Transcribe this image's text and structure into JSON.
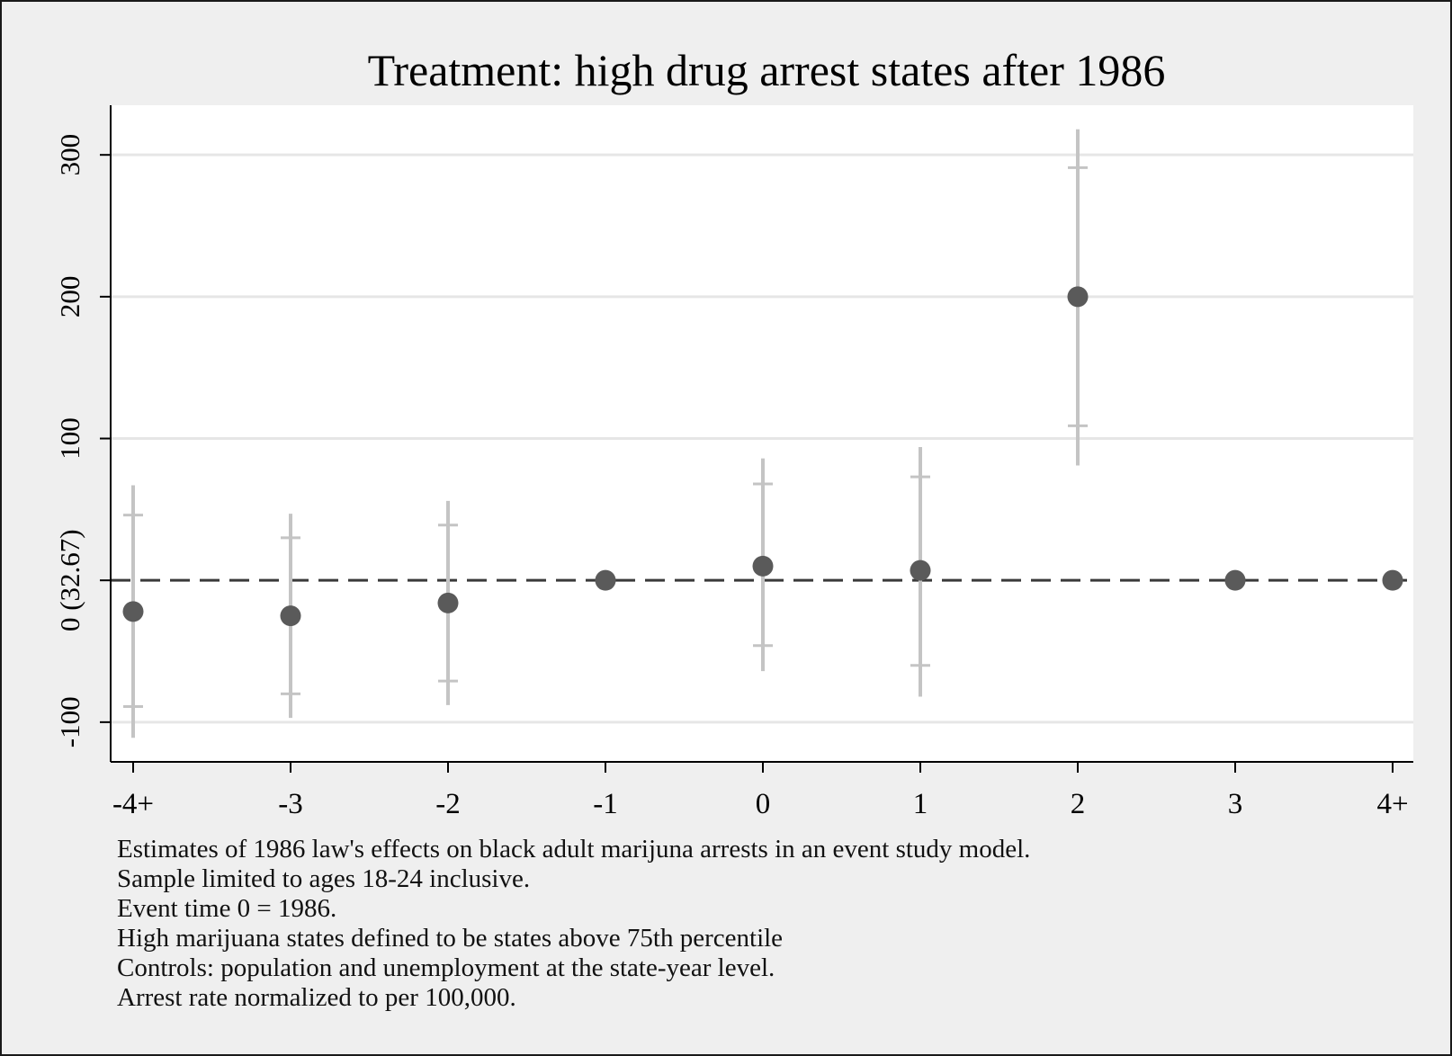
{
  "chart_data": {
    "type": "scatter",
    "title": "Treatment: high drug arrest states after 1986",
    "xlabel": "",
    "ylabel": "",
    "categories": [
      "-4+",
      "-3",
      "-2",
      "-1",
      "0",
      "1",
      "2",
      "3",
      "4+"
    ],
    "y_ticks": [
      {
        "value": 300,
        "label": "300"
      },
      {
        "value": 200,
        "label": "200"
      },
      {
        "value": 100,
        "label": "100"
      },
      {
        "value": 0,
        "label": "0 (32.67)"
      },
      {
        "value": -100,
        "label": "-100"
      }
    ],
    "ylim": [
      -128,
      335
    ],
    "grid": true,
    "reference_line": {
      "value": 0,
      "style": "dashed"
    },
    "series": [
      {
        "values": [
          -22,
          -25,
          -16,
          0,
          10,
          7,
          200,
          0,
          0
        ],
        "ci_outer_low": [
          -111,
          -97,
          -88,
          null,
          -64,
          -82,
          81,
          null,
          null
        ],
        "ci_outer_high": [
          67,
          47,
          56,
          null,
          86,
          94,
          318,
          null,
          null
        ],
        "ci_inner_low": [
          -89,
          -80,
          -71,
          null,
          -46,
          -60,
          109,
          null,
          null
        ],
        "ci_inner_high": [
          46,
          30,
          39,
          null,
          68,
          73,
          291,
          null,
          null
        ]
      }
    ],
    "colors": {
      "point": "#5a5a5a",
      "ci": "#c4c4c4",
      "grid": "#e6e6e6",
      "refline": "#3a3a3a",
      "plot_bg": "#ffffff",
      "outer_bg": "#efefef"
    }
  },
  "notes": [
    "Estimates of 1986 law's effects on black adult marijuna arrests in an event study model.",
    "Sample limited to ages 18-24 inclusive.",
    "Event time 0 = 1986.",
    "High marijuana states defined to be states above 75th percentile",
    "Controls: population and unemployment at the state-year level.",
    "Arrest rate normalized to per 100,000."
  ]
}
